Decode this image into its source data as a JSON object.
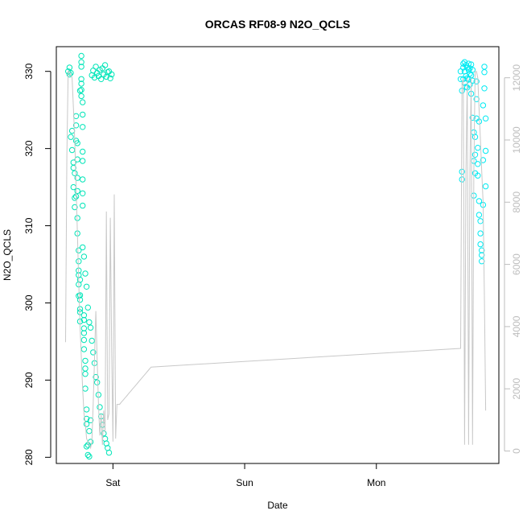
{
  "chart_data": {
    "type": "scatter",
    "title": "ORCAS RF08-9 N2O_QCLS",
    "xlabel": "Date",
    "ylabel": "N2O_QCLS",
    "x_ticks": [
      "Sat",
      "Sun",
      "Mon"
    ],
    "x_tick_days": [
      1,
      2,
      3
    ],
    "xlim_days": [
      0.57,
      3.93
    ],
    "ylim": [
      279.2,
      333.2
    ],
    "y_ticks": [
      280,
      290,
      300,
      310,
      320,
      330
    ],
    "y2lim": [
      -400,
      13000
    ],
    "y2_ticks": [
      0,
      2000,
      4000,
      6000,
      8000,
      10000,
      12000
    ],
    "series": [
      {
        "axis": "left",
        "style": "points",
        "color": "#00e5b8",
        "x_days": [
          0.66,
          0.67,
          0.67,
          0.68,
          0.68,
          0.69,
          0.69,
          0.7,
          0.7,
          0.7,
          0.71,
          0.71,
          0.71,
          0.72,
          0.72,
          0.72,
          0.72,
          0.73,
          0.73,
          0.73,
          0.73,
          0.73,
          0.73,
          0.74,
          0.74,
          0.74,
          0.74,
          0.74,
          0.74,
          0.75,
          0.75,
          0.75,
          0.75,
          0.75,
          0.75,
          0.75,
          0.76,
          0.76,
          0.76,
          0.76,
          0.76,
          0.76,
          0.76,
          0.77,
          0.77,
          0.77,
          0.77,
          0.77,
          0.77,
          0.77,
          0.77,
          0.78,
          0.78,
          0.78,
          0.78,
          0.78,
          0.78,
          0.79,
          0.79,
          0.79,
          0.79,
          0.8,
          0.8,
          0.8,
          0.8,
          0.81,
          0.81,
          0.82,
          0.82,
          0.83,
          0.83,
          0.84,
          0.85,
          0.86,
          0.87,
          0.88,
          0.89,
          0.9,
          0.91,
          0.92,
          0.93,
          0.94,
          0.95,
          0.96,
          0.97,
          0.98,
          0.99,
          0.77,
          0.78,
          0.79,
          0.8,
          0.81,
          0.82,
          0.83,
          0.84,
          0.85,
          0.86,
          0.87,
          0.88,
          0.89,
          0.9,
          0.91,
          0.92,
          0.93,
          0.94,
          0.95,
          0.96,
          0.97
        ],
        "y": [
          330.0,
          329.6,
          330.5,
          329.8,
          321.5,
          322.3,
          319.8,
          317.5,
          318.2,
          315.0,
          312.4,
          313.6,
          316.8,
          323.0,
          324.2,
          321.0,
          313.8,
          311.0,
          318.6,
          320.7,
          316.2,
          314.5,
          309.0,
          305.4,
          303.6,
          300.9,
          302.4,
          304.2,
          306.8,
          301.0,
          299.2,
          300.4,
          297.6,
          298.8,
          303.0,
          327.5,
          328.4,
          330.6,
          332.0,
          331.2,
          329.0,
          326.8,
          327.6,
          326.0,
          324.4,
          322.8,
          319.6,
          318.4,
          316.0,
          314.2,
          312.6,
          296.7,
          297.8,
          295.2,
          296.1,
          298.4,
          294.0,
          292.5,
          290.8,
          288.9,
          291.5,
          286.2,
          285.0,
          284.3,
          281.4,
          280.3,
          281.6,
          283.4,
          280.1,
          284.8,
          282.0,
          329.5,
          330.1,
          329.2,
          330.6,
          329.8,
          329.4,
          330.2,
          329.0,
          330.4,
          329.6,
          330.8,
          329.3,
          329.9,
          330.0,
          329.1,
          329.6,
          307.2,
          306.0,
          303.8,
          302.1,
          299.4,
          297.5,
          296.8,
          295.1,
          293.6,
          292.2,
          290.4,
          289.7,
          288.1,
          286.5,
          285.3,
          284.2,
          283.1,
          282.4,
          281.8,
          281.2,
          280.6
        ]
      },
      {
        "axis": "left",
        "style": "points",
        "color": "#00eaf2",
        "x_days": [
          3.64,
          3.64,
          3.65,
          3.65,
          3.65,
          3.66,
          3.66,
          3.66,
          3.67,
          3.67,
          3.67,
          3.68,
          3.68,
          3.68,
          3.69,
          3.69,
          3.69,
          3.7,
          3.7,
          3.7,
          3.71,
          3.71,
          3.71,
          3.72,
          3.72,
          3.72,
          3.73,
          3.73,
          3.73,
          3.74,
          3.74,
          3.74,
          3.75,
          3.75,
          3.75,
          3.76,
          3.76,
          3.76,
          3.77,
          3.77,
          3.77,
          3.78,
          3.78,
          3.78,
          3.79,
          3.79,
          3.79,
          3.8,
          3.8,
          3.8,
          3.81,
          3.81,
          3.81,
          3.82,
          3.82,
          3.82,
          3.83,
          3.83,
          3.83
        ],
        "y": [
          330.0,
          329.0,
          316.0,
          317.0,
          327.5,
          330.5,
          331.0,
          329.0,
          330.0,
          331.2,
          328.5,
          330.8,
          329.4,
          328.0,
          330.5,
          329.1,
          327.9,
          331.0,
          330.2,
          329.0,
          330.4,
          329.7,
          328.3,
          330.9,
          329.5,
          327.1,
          330.2,
          328.8,
          324.0,
          318.4,
          322.1,
          313.9,
          316.8,
          319.2,
          321.5,
          323.9,
          326.4,
          328.7,
          320.1,
          316.5,
          318.0,
          323.5,
          313.2,
          311.4,
          310.6,
          309.0,
          307.6,
          306.2,
          305.4,
          306.8,
          312.7,
          318.5,
          325.6,
          329.9,
          330.6,
          327.8,
          323.9,
          319.7,
          315.1
        ]
      },
      {
        "axis": "right",
        "style": "line",
        "color": "#c8c8c8",
        "x_days": [
          0.64,
          0.65,
          0.66,
          0.67,
          0.68,
          0.69,
          0.7,
          0.71,
          0.72,
          0.73,
          0.74,
          0.75,
          0.76,
          0.77,
          0.78,
          0.79,
          0.8,
          0.81,
          0.82,
          0.83,
          0.84,
          0.85,
          0.86,
          0.87,
          0.88,
          0.89,
          0.9,
          0.91,
          0.92,
          0.93,
          0.94,
          0.95,
          0.96,
          0.97,
          0.98,
          0.99,
          1.0,
          1.01,
          1.02,
          1.03,
          1.04,
          1.05,
          1.06,
          1.07,
          1.08,
          1.09,
          1.1,
          1.11,
          1.12,
          1.13,
          1.14,
          1.15,
          1.16,
          1.17,
          1.18,
          1.19,
          1.2,
          1.21,
          1.22,
          1.23,
          1.24,
          1.25,
          1.26,
          1.27,
          1.28,
          1.29,
          3.64,
          3.65,
          3.66,
          3.67,
          3.68,
          3.69,
          3.7,
          3.71,
          3.72,
          3.73,
          3.74,
          3.75,
          3.76,
          3.77,
          3.78,
          3.79,
          3.8,
          3.81,
          3.82,
          3.83
        ],
        "y": [
          3500,
          9500,
          12200,
          12200,
          12100,
          12000,
          11000,
          10000,
          8500,
          7000,
          5500,
          4000,
          3000,
          2000,
          1200,
          900,
          400,
          300,
          200,
          100,
          300,
          1500,
          3000,
          4500,
          3000,
          1500,
          500,
          1200,
          200,
          1300,
          600,
          7700,
          1000,
          1200,
          7500,
          3200,
          300,
          8250,
          400,
          1500,
          1500,
          1500,
          1550,
          1600,
          1650,
          1700,
          1750,
          1800,
          1850,
          1900,
          1950,
          2000,
          2050,
          2100,
          2150,
          2200,
          2250,
          2300,
          2350,
          2400,
          2450,
          2500,
          2550,
          2600,
          2650,
          2700,
          3300,
          11800,
          12000,
          200,
          9000,
          12000,
          200,
          9000,
          12000,
          200,
          9000,
          12200,
          12200,
          12000,
          11000,
          10000,
          9000,
          8000,
          5000,
          1300
        ]
      }
    ]
  }
}
